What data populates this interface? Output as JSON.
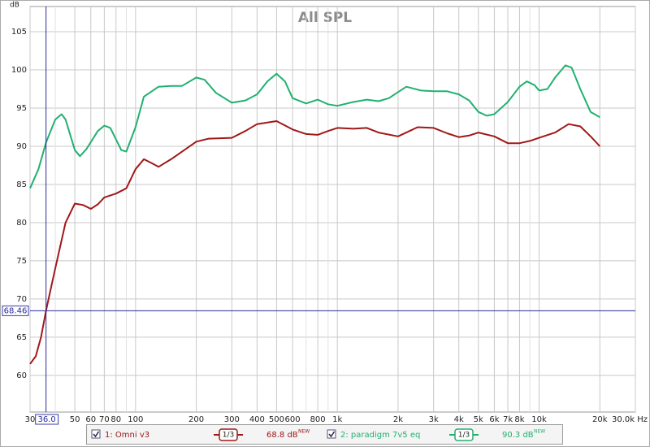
{
  "chart_data": {
    "type": "line",
    "title": "All SPL",
    "y_unit": "dB",
    "xscale": "log",
    "grid": true,
    "xlim": [
      30,
      30000
    ],
    "ylim": [
      55.2,
      108.3
    ],
    "yticks": [
      60,
      65,
      70,
      75,
      80,
      85,
      90,
      95,
      100,
      105
    ],
    "xticks": [
      30,
      50,
      60,
      70,
      80,
      100,
      200,
      300,
      400,
      500,
      600,
      800,
      {
        "value": 1000,
        "label": "1k"
      },
      {
        "value": 2000,
        "label": "2k"
      },
      {
        "value": 3000,
        "label": "3k"
      },
      {
        "value": 4000,
        "label": "4k"
      },
      {
        "value": 5000,
        "label": "5k"
      },
      {
        "value": 6000,
        "label": "6k"
      },
      {
        "value": 7000,
        "label": "7k"
      },
      {
        "value": 8000,
        "label": "8k"
      },
      {
        "value": 10000,
        "label": "10k"
      },
      {
        "value": 20000,
        "label": "20k"
      },
      {
        "value": 30000,
        "label": "30.0k Hz"
      }
    ],
    "xgrid_minor": [
      40,
      90,
      700,
      900,
      9000
    ],
    "cursor": {
      "x": {
        "value": 36,
        "label": "36.0"
      },
      "y": 68.46
    },
    "series": [
      {
        "name": "1: Omni v3",
        "color": "#a01818",
        "smoothing": "1/3",
        "readout": "68.8 dB",
        "readout_tag": "NEW",
        "x": [
          30,
          32,
          34,
          36,
          40,
          45,
          50,
          55,
          60,
          65,
          70,
          80,
          90,
          100,
          110,
          120,
          130,
          150,
          200,
          230,
          300,
          350,
          400,
          500,
          600,
          700,
          800,
          900,
          1000,
          1200,
          1400,
          1600,
          2000,
          2500,
          3000,
          3500,
          4000,
          4500,
          5000,
          6000,
          7000,
          8000,
          9000,
          10000,
          12000,
          14000,
          16000,
          18000,
          20000
        ],
        "values": [
          61.5,
          62.5,
          65,
          68.5,
          74,
          80,
          82.5,
          82.3,
          81.8,
          82.4,
          83.3,
          83.8,
          84.5,
          87,
          88.3,
          87.8,
          87.3,
          88.3,
          90.6,
          91,
          91.1,
          92,
          92.9,
          93.3,
          92.2,
          91.6,
          91.5,
          92,
          92.4,
          92.3,
          92.4,
          91.8,
          91.3,
          92.5,
          92.4,
          91.7,
          91.2,
          91.4,
          91.8,
          91.3,
          90.4,
          90.4,
          90.7,
          91.1,
          91.8,
          92.9,
          92.6,
          91.3,
          90
        ]
      },
      {
        "name": "2: paradigm 7v5 eq",
        "color": "#22b070",
        "smoothing": "1/3",
        "readout": "90.3 dB",
        "readout_tag": "NEW",
        "x": [
          30,
          33,
          36,
          40,
          43,
          45,
          50,
          53,
          57,
          65,
          70,
          75,
          85,
          90,
          100,
          110,
          130,
          150,
          170,
          200,
          220,
          250,
          300,
          350,
          400,
          450,
          500,
          550,
          600,
          700,
          800,
          900,
          1000,
          1200,
          1400,
          1600,
          1800,
          2000,
          2200,
          2600,
          3000,
          3500,
          4000,
          4500,
          5000,
          5500,
          6000,
          7000,
          8000,
          8700,
          9500,
          10000,
          11000,
          12000,
          13500,
          14500,
          16000,
          18000,
          20000
        ],
        "values": [
          84.5,
          87,
          90.5,
          93.5,
          94.2,
          93.5,
          89.5,
          88.7,
          89.6,
          92,
          92.7,
          92.4,
          89.5,
          89.3,
          92.5,
          96.5,
          97.8,
          97.9,
          97.9,
          99,
          98.7,
          97,
          95.7,
          96,
          96.8,
          98.5,
          99.5,
          98.5,
          96.3,
          95.6,
          96.1,
          95.5,
          95.3,
          95.8,
          96.1,
          95.9,
          96.3,
          97.1,
          97.8,
          97.3,
          97.2,
          97.2,
          96.8,
          96,
          94.5,
          94,
          94.2,
          95.8,
          97.8,
          98.5,
          98,
          97.3,
          97.5,
          99,
          100.6,
          100.3,
          97.5,
          94.5,
          93.8
        ]
      }
    ]
  }
}
